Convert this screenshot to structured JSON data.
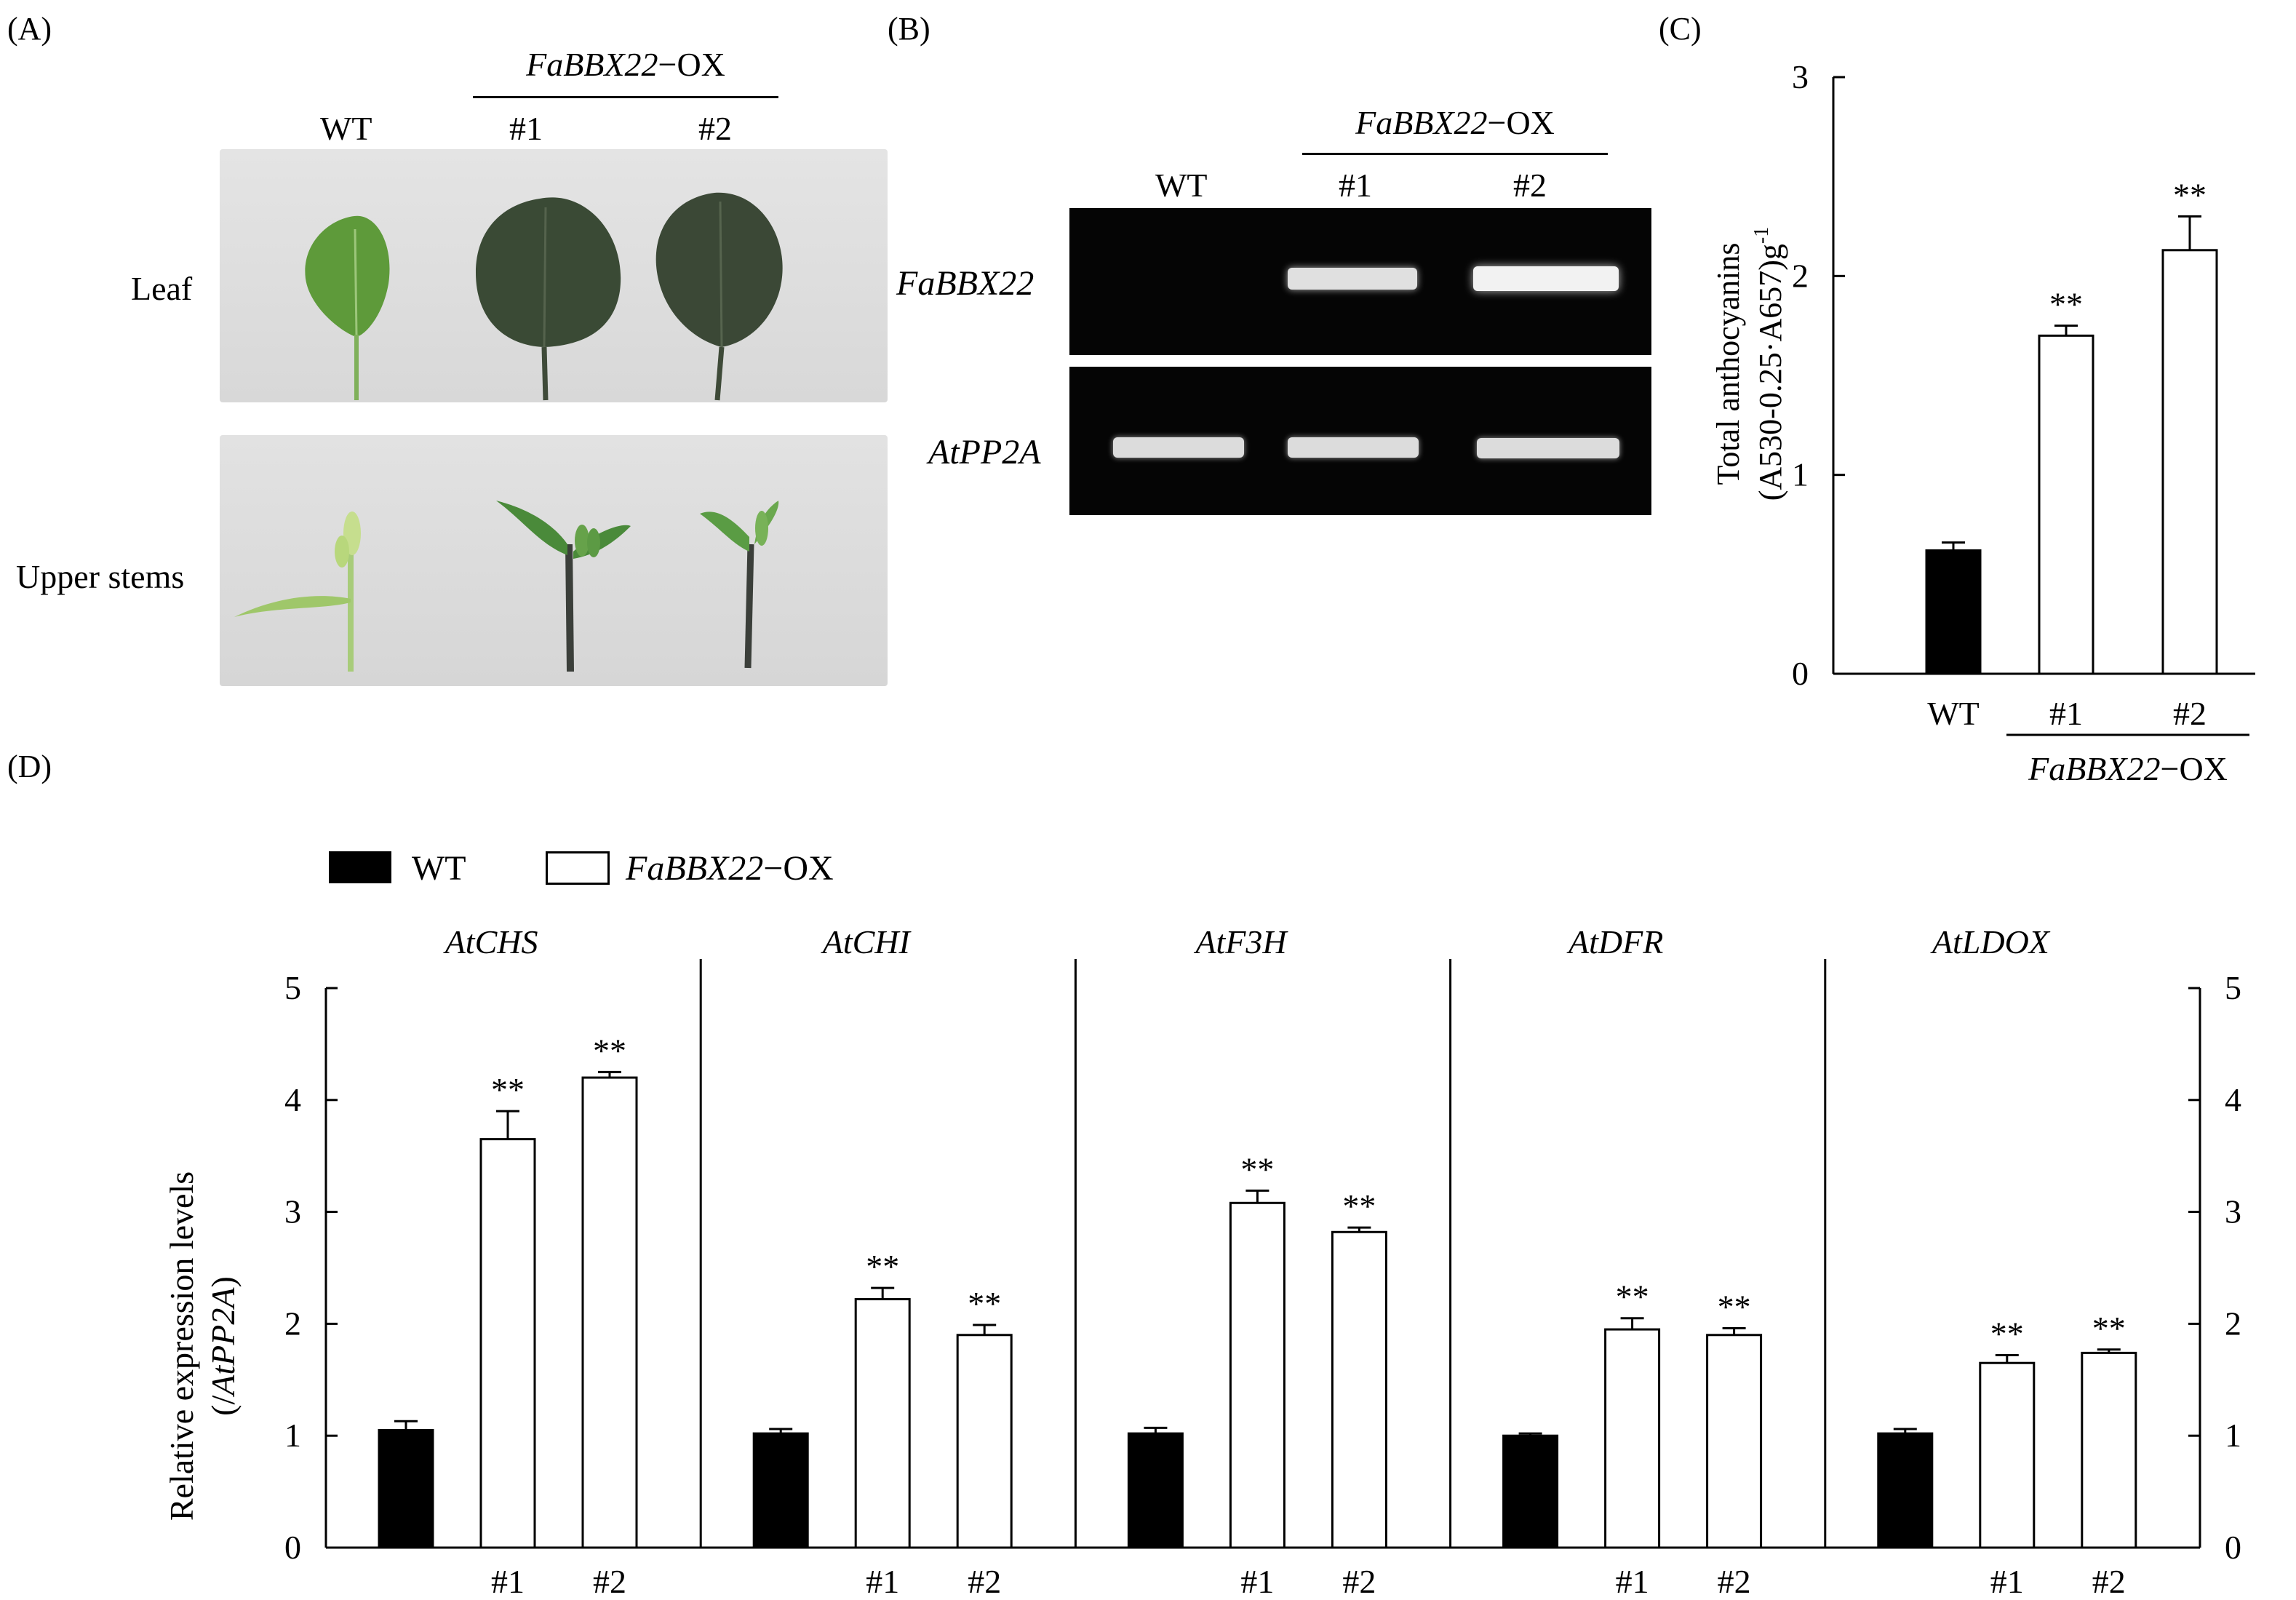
{
  "panel_a": {
    "label": "(A)",
    "header_ox_prefix": "FaBBX22",
    "header_ox_suffix": "−OX",
    "col_wt": "WT",
    "col_1": "#1",
    "col_2": "#2",
    "row_leaf": "Leaf",
    "row_stems": "Upper stems"
  },
  "panel_b": {
    "label": "(B)",
    "header_ox_prefix": "FaBBX22",
    "header_ox_suffix": "−OX",
    "col_wt": "WT",
    "col_1": "#1",
    "col_2": "#2",
    "gel_label_1": "FaBBX22",
    "gel_label_2": "AtPP2A"
  },
  "panel_c": {
    "label": "(C)",
    "ylabel_line1": "Total anthocyanins",
    "ylabel_line2": "(A530-0.25·A657)g",
    "ylabel_sup": "-1",
    "group_prefix": "FaBBX22",
    "group_suffix": "−OX",
    "sig": "**"
  },
  "panel_d": {
    "label": "(D)",
    "legend_wt": "WT",
    "legend_ox_prefix": "FaBBX22",
    "legend_ox_suffix": "−OX",
    "ylabel_line1": "Relative expression levels",
    "ylabel_line2_prefix": "(/",
    "ylabel_line2_gene": "AtPP2A",
    "ylabel_line2_suffix": ")",
    "sig": "**"
  },
  "colors": {
    "wt_fill": "#000000",
    "ox_fill": "#ffffff",
    "gel_bg": "#050505",
    "band": "#e8e8e8"
  },
  "chart_data": [
    {
      "type": "bar",
      "panel": "C",
      "categories": [
        "WT",
        "#1",
        "#2"
      ],
      "values": [
        0.62,
        1.7,
        2.13
      ],
      "errors": [
        0.04,
        0.05,
        0.17
      ],
      "significance": [
        "",
        "**",
        "**"
      ],
      "fills": [
        "#000000",
        "#ffffff",
        "#ffffff"
      ],
      "ylim": [
        0,
        3
      ],
      "yticks": [
        0,
        1,
        2,
        3
      ]
    },
    {
      "type": "bar",
      "panel": "D",
      "ylim": [
        0,
        5
      ],
      "yticks": [
        0,
        1,
        2,
        3,
        4,
        5
      ],
      "categories": [
        "",
        "#1",
        "#2"
      ],
      "groups": [
        {
          "name": "AtCHS",
          "values": [
            1.05,
            3.65,
            4.2
          ],
          "errors": [
            0.08,
            0.25,
            0.05
          ],
          "significance": [
            "",
            "**",
            "**"
          ]
        },
        {
          "name": "AtCHI",
          "values": [
            1.02,
            2.22,
            1.9
          ],
          "errors": [
            0.04,
            0.1,
            0.09
          ],
          "significance": [
            "",
            "**",
            "**"
          ]
        },
        {
          "name": "AtF3H",
          "values": [
            1.02,
            3.08,
            2.82
          ],
          "errors": [
            0.05,
            0.11,
            0.04
          ],
          "significance": [
            "",
            "**",
            "**"
          ]
        },
        {
          "name": "AtDFR",
          "values": [
            1.0,
            1.95,
            1.9
          ],
          "errors": [
            0.02,
            0.1,
            0.06
          ],
          "significance": [
            "",
            "**",
            "**"
          ]
        },
        {
          "name": "AtLDOX",
          "values": [
            1.02,
            1.65,
            1.74
          ],
          "errors": [
            0.04,
            0.07,
            0.03
          ],
          "significance": [
            "",
            "**",
            "**"
          ]
        }
      ]
    }
  ]
}
